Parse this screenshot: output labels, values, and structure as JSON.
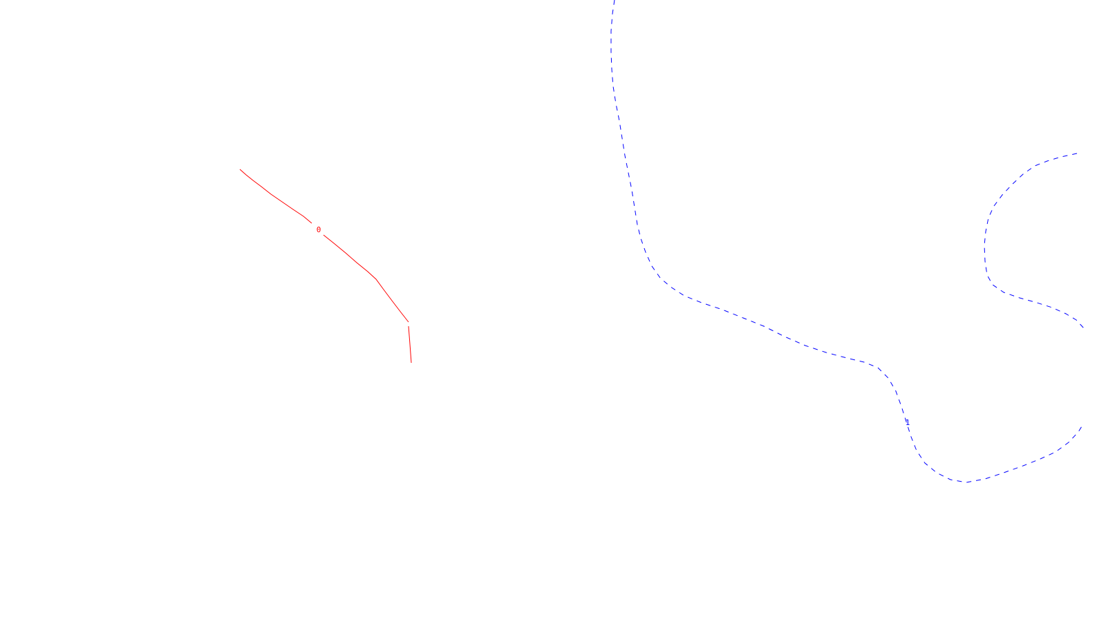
{
  "canvas": {
    "background": "#ffffff"
  },
  "contours": [
    {
      "id": "red",
      "label": "0",
      "color": "#ff0000",
      "style": "solid"
    },
    {
      "id": "blue",
      "label": "1",
      "color": "#0000ff",
      "style": "dashed"
    }
  ]
}
